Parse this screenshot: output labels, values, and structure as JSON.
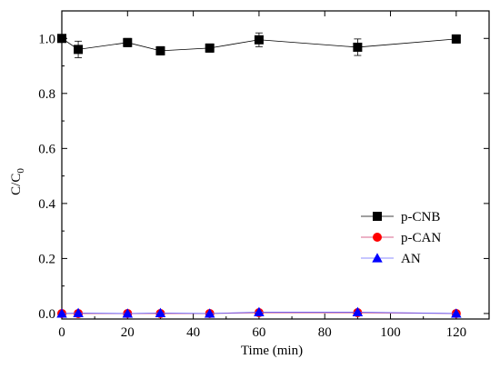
{
  "chart_data": {
    "type": "line",
    "xlabel": "Time (min)",
    "ylabel_main": "C/C",
    "ylabel_sub": "0",
    "xlim": [
      0,
      130
    ],
    "ylim": [
      -0.02,
      1.1
    ],
    "xticks": [
      0,
      20,
      40,
      60,
      80,
      100,
      120
    ],
    "xtick_labels": [
      "0",
      "20",
      "40",
      "60",
      "80",
      "100",
      "120"
    ],
    "yticks": [
      0.0,
      0.2,
      0.4,
      0.6,
      0.8,
      1.0
    ],
    "ytick_labels": [
      "0.0",
      "0.2",
      "0.4",
      "0.6",
      "0.8",
      "1.0"
    ],
    "legend_position": "center-right",
    "series": [
      {
        "name": "p-CNB",
        "marker": "square",
        "color": "#000000",
        "line_color": "#000000",
        "x": [
          0,
          5,
          20,
          30,
          45,
          60,
          90,
          120
        ],
        "y": [
          1.0,
          0.96,
          0.985,
          0.955,
          0.965,
          0.995,
          0.968,
          0.998
        ],
        "err": [
          0.01,
          0.03,
          0.015,
          0.015,
          0.015,
          0.025,
          0.03,
          0.015
        ]
      },
      {
        "name": "p-CAN",
        "marker": "circle",
        "color": "#ff0000",
        "line_color": "#cc3366",
        "x": [
          0,
          5,
          20,
          30,
          45,
          60,
          90,
          120
        ],
        "y": [
          0.0,
          0.0,
          0.0,
          0.0,
          0.0,
          0.003,
          0.003,
          0.0
        ],
        "err": [
          0,
          0,
          0,
          0,
          0,
          0,
          0,
          0
        ]
      },
      {
        "name": "AN",
        "marker": "triangle",
        "color": "#0000ff",
        "line_color": "#6666ff",
        "x": [
          0,
          5,
          20,
          30,
          45,
          60,
          90,
          120
        ],
        "y": [
          0.0,
          0.002,
          0.0,
          0.002,
          0.0,
          0.005,
          0.005,
          0.0
        ],
        "err": [
          0,
          0,
          0,
          0,
          0,
          0,
          0,
          0
        ]
      }
    ]
  }
}
